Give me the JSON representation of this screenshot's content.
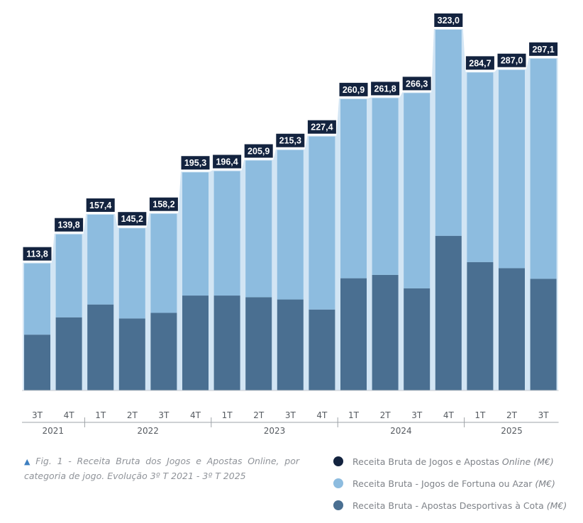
{
  "chart_data": {
    "type": "bar",
    "stacked": true,
    "title": "",
    "xlabel": "",
    "ylabel": "",
    "ylim": [
      0,
      323.0
    ],
    "grid": false,
    "categories": [
      "3T",
      "4T",
      "1T",
      "2T",
      "3T",
      "4T",
      "1T",
      "2T",
      "3T",
      "4T",
      "1T",
      "2T",
      "3T",
      "4T",
      "1T",
      "2T",
      "3T"
    ],
    "year_groups": [
      {
        "label": "2021",
        "start": 0,
        "end": 1
      },
      {
        "label": "2022",
        "start": 2,
        "end": 5
      },
      {
        "label": "2023",
        "start": 6,
        "end": 9
      },
      {
        "label": "2024",
        "start": 10,
        "end": 13
      },
      {
        "label": "2025",
        "start": 14,
        "end": 16
      }
    ],
    "totals": [
      113.8,
      139.8,
      157.4,
      145.2,
      158.2,
      195.3,
      196.4,
      205.9,
      215.3,
      227.4,
      260.9,
      261.8,
      266.3,
      323.0,
      284.7,
      287.0,
      297.1
    ],
    "total_labels": [
      "113,8",
      "139,8",
      "157,4",
      "145,2",
      "158,2",
      "195,3",
      "196,4",
      "205,9",
      "215,3",
      "227,4",
      "260,9",
      "261,8",
      "266,3",
      "323,0",
      "284,7",
      "287,0",
      "297,1"
    ],
    "series": [
      {
        "name": "Receita Bruta - Apostas Desportivas à Cota",
        "color": "#4a6f91",
        "values": [
          50.0,
          65.5,
          77.0,
          64.5,
          69.5,
          85.0,
          85.0,
          83.5,
          81.5,
          72.5,
          100.5,
          103.5,
          91.5,
          138.5,
          115.0,
          109.5,
          100.0
        ]
      },
      {
        "name": "Receita Bruta - Jogos de Fortuna ou Azar",
        "color": "#8dbcdf",
        "values": [
          63.8,
          74.3,
          80.4,
          80.7,
          88.7,
          110.3,
          111.4,
          122.4,
          133.8,
          154.9,
          160.4,
          158.3,
          174.8,
          184.5,
          169.7,
          177.5,
          197.1
        ]
      }
    ],
    "total_series_name": "Receita Bruta de Jogos e Apostas Online (M€)",
    "total_color": "#13233f",
    "band_color": "#d2e5f4"
  },
  "caption": {
    "text": "Fig. 1 - Receita Bruta dos Jogos e Apostas Online, por categoria de jogo. Evolução 3º T 2021 - 3º T 2025"
  },
  "legend": [
    {
      "prefix": "Receita Bruta de Jogos e Apostas ",
      "italic": "Online (M€)",
      "color": "#13233f"
    },
    {
      "prefix": "Receita Bruta - Jogos de Fortuna ou Azar ",
      "italic": "(M€)",
      "color": "#8dbcdf"
    },
    {
      "prefix": "Receita Bruta - Apostas Desportivas à Cota ",
      "italic": "(M€)",
      "color": "#4a6f91"
    }
  ]
}
